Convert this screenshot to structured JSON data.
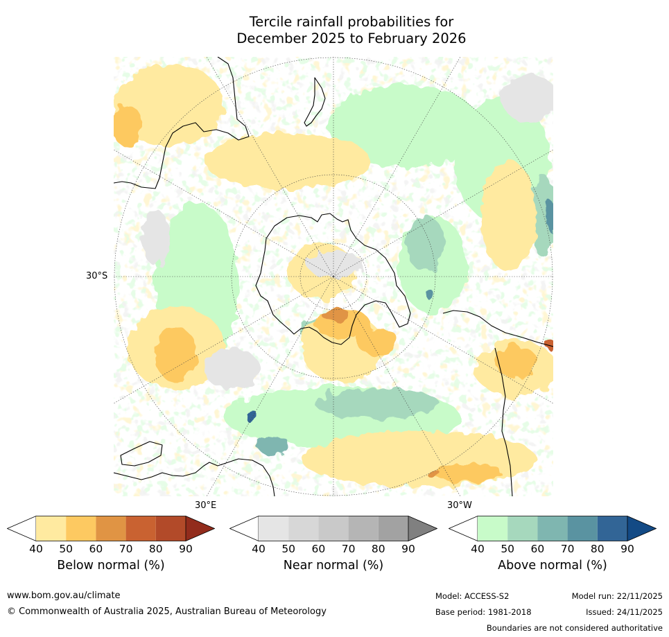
{
  "title_line1": "Tercile rainfall probabilities for",
  "title_line2": "December 2025 to February 2026",
  "lat_label": "30°S",
  "lon_labels": {
    "east": "30°E",
    "west": "30°W"
  },
  "legend": {
    "below": {
      "label": "Below normal (%)",
      "ticks": [
        "40",
        "50",
        "60",
        "70",
        "80",
        "90"
      ],
      "colors": [
        "#ffffff",
        "#ffeaa0",
        "#fdc961",
        "#e09444",
        "#c96231",
        "#b24a29",
        "#922c1c"
      ]
    },
    "near": {
      "label": "Near normal (%)",
      "ticks": [
        "40",
        "50",
        "60",
        "70",
        "80",
        "90"
      ],
      "colors": [
        "#ffffff",
        "#e5e5e5",
        "#d7d7d7",
        "#c9c9c9",
        "#b5b5b5",
        "#a2a2a2",
        "#808080"
      ]
    },
    "above": {
      "label": "Above normal (%)",
      "ticks": [
        "40",
        "50",
        "60",
        "70",
        "80",
        "90"
      ],
      "colors": [
        "#ffffff",
        "#c8fbc9",
        "#a6d8bd",
        "#7fb6b0",
        "#5a93a1",
        "#326596",
        "#134a85"
      ]
    }
  },
  "footer": {
    "url": "www.bom.gov.au/climate",
    "copyright": "© Commonwealth of Australia 2025, Australian Bureau of Meteorology",
    "model": "Model: ACCESS-S2",
    "base_period": "Base period: 1981-2018",
    "model_run": "Model run: 22/11/2025",
    "issued": "Issued: 24/11/2025",
    "disclaimer": "Boundaries are not considered authoritative"
  }
}
